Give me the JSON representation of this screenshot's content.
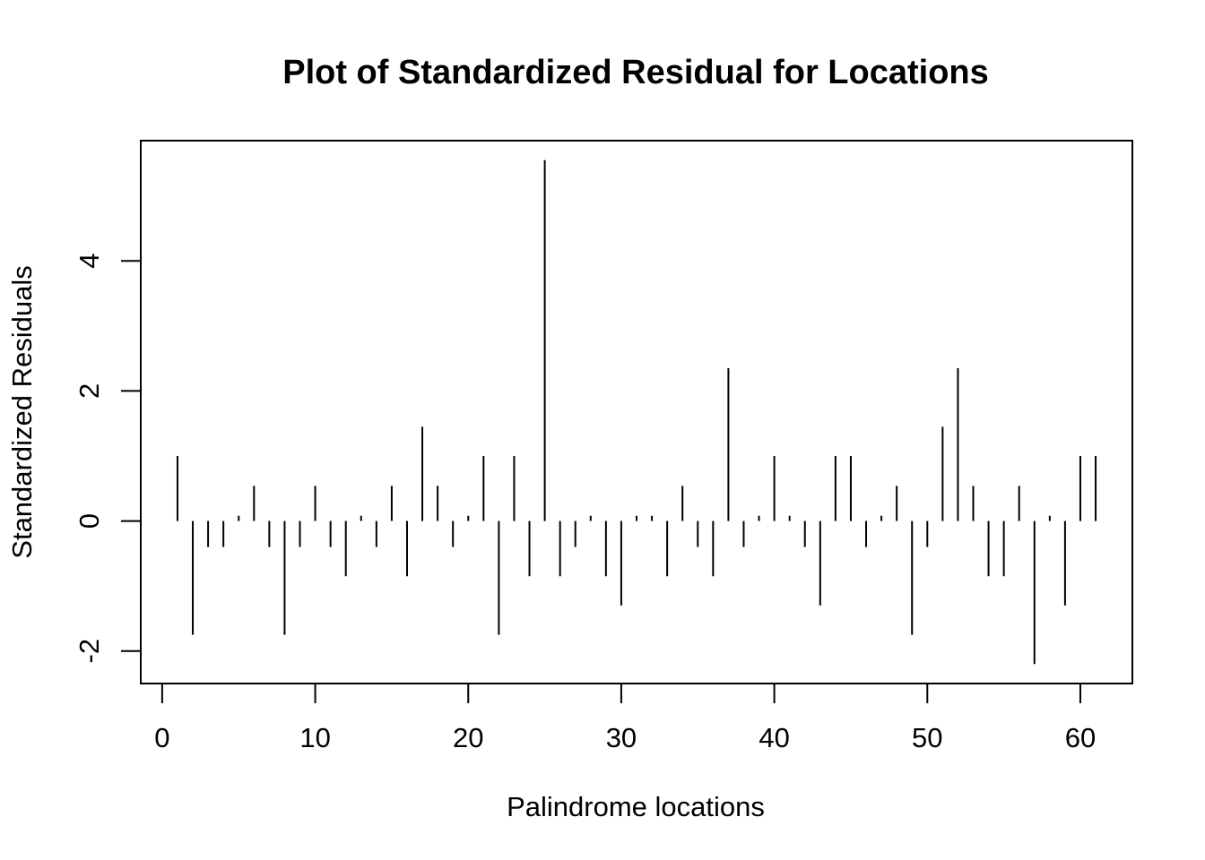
{
  "chart_data": {
    "type": "bar",
    "title": "Plot of Standardized Residual for Locations",
    "xlabel": "Palindrome locations",
    "ylabel": "Standardized Residuals",
    "xlim": [
      -1.4,
      63.4
    ],
    "ylim": [
      -2.5,
      5.85
    ],
    "xticks": [
      0,
      10,
      20,
      30,
      40,
      50,
      60
    ],
    "yticks": [
      -2,
      0,
      2,
      4
    ],
    "grid": false,
    "legend": "none",
    "style": "histogram-lines",
    "color": "#000000",
    "x": [
      1,
      2,
      3,
      4,
      5,
      6,
      7,
      8,
      9,
      10,
      11,
      12,
      13,
      14,
      15,
      16,
      17,
      18,
      19,
      20,
      21,
      22,
      23,
      24,
      25,
      26,
      27,
      28,
      29,
      30,
      31,
      32,
      33,
      34,
      35,
      36,
      37,
      38,
      39,
      40,
      41,
      42,
      43,
      44,
      45,
      46,
      47,
      48,
      49,
      50,
      51,
      52,
      53,
      54,
      55,
      56,
      57,
      58,
      59,
      60,
      61
    ],
    "values": [
      1.0,
      -1.75,
      -0.4,
      -0.4,
      0.08,
      0.54,
      -0.4,
      -1.75,
      -0.4,
      0.54,
      -0.4,
      -0.85,
      0.08,
      -0.4,
      0.54,
      -0.85,
      1.45,
      0.54,
      -0.4,
      0.08,
      1.0,
      -1.75,
      1.0,
      -0.85,
      5.55,
      -0.85,
      -0.4,
      0.08,
      -0.85,
      -1.3,
      0.08,
      0.08,
      -0.85,
      0.54,
      -0.4,
      -0.85,
      2.35,
      -0.4,
      0.08,
      1.0,
      0.08,
      -0.4,
      -1.3,
      1.0,
      1.0,
      -0.4,
      0.08,
      0.54,
      -1.75,
      -0.4,
      1.45,
      2.35,
      0.54,
      -0.85,
      -0.85,
      0.54,
      -2.2,
      0.08,
      -1.3,
      1.0,
      1.0
    ]
  }
}
